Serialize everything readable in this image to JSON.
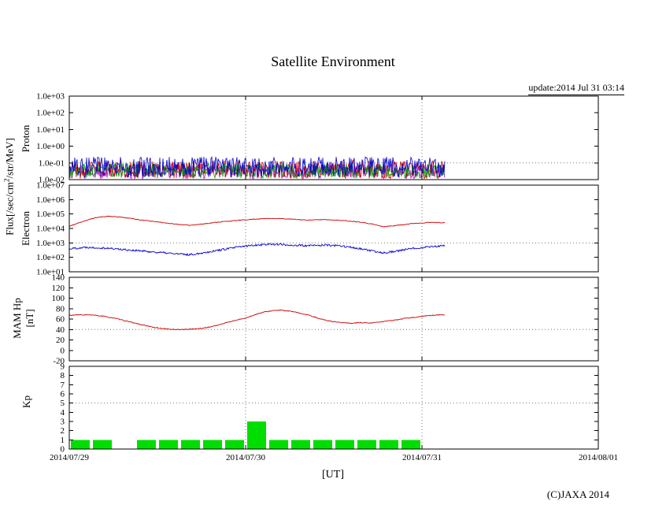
{
  "page": {
    "update_text": "update:2014 Jul 31 03:14",
    "copyright": "(C)JAXA 2014",
    "background": "#ffffff"
  },
  "axis_labels": {
    "flux_prefix": "Flux[/sec/cm",
    "flux_sup": "2",
    "flux_suffix": "/str/MeV]",
    "proton": "Proton",
    "electron": "Electron",
    "mam_hp_line1": "MAM Hp",
    "mam_hp_line2": "[nT]",
    "kp": "Kp"
  },
  "chart_data": {
    "suptitle": "Satellite Environment",
    "xaxis": {
      "label": "[UT]",
      "tick_labels": [
        "2014/07/29",
        "2014/07/30",
        "2014/07/31",
        "2014/08/01"
      ],
      "span_days": 3
    },
    "grid": {
      "vertical_dotted_days": [
        1,
        2
      ],
      "dotted_color": "#777777"
    },
    "panels": [
      {
        "name": "proton",
        "type": "line",
        "render": "noise-band",
        "ylabel": "Proton",
        "yscale": "log",
        "ylim_log": [
          -2,
          3
        ],
        "yticks": {
          "values": [
            1000,
            100,
            10,
            1,
            0.1,
            0.01
          ],
          "labels": [
            "1.0e+03",
            "1.0e+02",
            "1.0e+01",
            "1.0e+00",
            "1.0e-01",
            "1.0e-02"
          ]
        },
        "threshold": 0.1,
        "x_end_days": 2.13,
        "seed": 20140731,
        "series": [
          {
            "name": "proton-ch-magenta",
            "color": "#aa00aa",
            "center_log": -1.5,
            "noise_log": 0.45
          },
          {
            "name": "proton-ch-red",
            "color": "#cc0000",
            "center_log": -1.4,
            "noise_log": 0.55
          },
          {
            "name": "proton-ch-green",
            "color": "#009900",
            "center_log": -1.45,
            "noise_log": 0.45
          },
          {
            "name": "proton-ch-blue",
            "color": "#0000cc",
            "center_log": -1.25,
            "noise_log": 0.62
          }
        ]
      },
      {
        "name": "electron",
        "type": "line",
        "render": "lines",
        "ylabel": "Electron",
        "yscale": "log",
        "ylim_log": [
          1,
          7
        ],
        "yticks": {
          "values": [
            10000000,
            1000000,
            100000,
            10000,
            1000,
            100,
            10
          ],
          "labels": [
            "1.0e+07",
            "1.0e+06",
            "1.0e+05",
            "1.0e+04",
            "1.0e+03",
            "1.0e+02",
            "1.0e+01"
          ]
        },
        "threshold": 1000,
        "series": [
          {
            "name": "electron-high",
            "color": "#cc0000",
            "noise": 0.025,
            "seed": 11,
            "value_units": "log10(flux)",
            "points": [
              [
                0,
                4.15
              ],
              [
                0.08,
                4.5
              ],
              [
                0.15,
                4.75
              ],
              [
                0.22,
                4.85
              ],
              [
                0.3,
                4.78
              ],
              [
                0.4,
                4.6
              ],
              [
                0.5,
                4.45
              ],
              [
                0.6,
                4.3
              ],
              [
                0.68,
                4.22
              ],
              [
                0.75,
                4.3
              ],
              [
                0.85,
                4.45
              ],
              [
                0.95,
                4.55
              ],
              [
                1.05,
                4.65
              ],
              [
                1.15,
                4.7
              ],
              [
                1.25,
                4.65
              ],
              [
                1.35,
                4.58
              ],
              [
                1.45,
                4.62
              ],
              [
                1.55,
                4.55
              ],
              [
                1.65,
                4.45
              ],
              [
                1.72,
                4.3
              ],
              [
                1.78,
                4.12
              ],
              [
                1.85,
                4.2
              ],
              [
                1.95,
                4.35
              ],
              [
                2.05,
                4.42
              ],
              [
                2.13,
                4.4
              ]
            ]
          },
          {
            "name": "electron-low",
            "color": "#0000cc",
            "noise": 0.07,
            "seed": 22,
            "value_units": "log10(flux)",
            "points": [
              [
                0,
                2.6
              ],
              [
                0.1,
                2.7
              ],
              [
                0.2,
                2.65
              ],
              [
                0.3,
                2.55
              ],
              [
                0.4,
                2.45
              ],
              [
                0.5,
                2.35
              ],
              [
                0.6,
                2.25
              ],
              [
                0.68,
                2.18
              ],
              [
                0.75,
                2.3
              ],
              [
                0.85,
                2.5
              ],
              [
                0.95,
                2.7
              ],
              [
                1.05,
                2.85
              ],
              [
                1.15,
                2.92
              ],
              [
                1.25,
                2.85
              ],
              [
                1.35,
                2.8
              ],
              [
                1.45,
                2.85
              ],
              [
                1.55,
                2.78
              ],
              [
                1.65,
                2.6
              ],
              [
                1.72,
                2.42
              ],
              [
                1.78,
                2.32
              ],
              [
                1.85,
                2.42
              ],
              [
                1.95,
                2.62
              ],
              [
                2.05,
                2.75
              ],
              [
                2.13,
                2.8
              ]
            ]
          }
        ]
      },
      {
        "name": "mam-hp",
        "type": "line",
        "render": "lines",
        "ylabel": "MAM Hp [nT]",
        "yscale": "linear",
        "ylim": [
          -20,
          140
        ],
        "yticks": {
          "values": [
            140,
            120,
            100,
            80,
            60,
            40,
            20,
            0,
            -20
          ],
          "labels": [
            "140",
            "120",
            "100",
            "80",
            "60",
            "40",
            "20",
            "0",
            "-20"
          ]
        },
        "threshold": 40,
        "series": [
          {
            "name": "hp",
            "color": "#cc0000",
            "noise": 0.8,
            "seed": 33,
            "value_units": "nT",
            "points": [
              [
                0,
                67
              ],
              [
                0.05,
                68
              ],
              [
                0.1,
                68
              ],
              [
                0.15,
                67
              ],
              [
                0.2,
                65
              ],
              [
                0.25,
                62
              ],
              [
                0.3,
                58
              ],
              [
                0.35,
                54
              ],
              [
                0.4,
                50
              ],
              [
                0.45,
                46
              ],
              [
                0.5,
                43
              ],
              [
                0.55,
                41
              ],
              [
                0.6,
                40
              ],
              [
                0.65,
                40
              ],
              [
                0.7,
                41
              ],
              [
                0.75,
                42
              ],
              [
                0.8,
                45
              ],
              [
                0.85,
                49
              ],
              [
                0.9,
                54
              ],
              [
                0.95,
                58
              ],
              [
                1.0,
                62
              ],
              [
                1.05,
                68
              ],
              [
                1.1,
                73
              ],
              [
                1.15,
                76
              ],
              [
                1.2,
                77
              ],
              [
                1.25,
                75
              ],
              [
                1.3,
                72
              ],
              [
                1.35,
                68
              ],
              [
                1.4,
                63
              ],
              [
                1.45,
                58
              ],
              [
                1.5,
                55
              ],
              [
                1.55,
                53
              ],
              [
                1.6,
                52
              ],
              [
                1.65,
                53
              ],
              [
                1.7,
                52
              ],
              [
                1.75,
                54
              ],
              [
                1.8,
                56
              ],
              [
                1.85,
                58
              ],
              [
                1.9,
                61
              ],
              [
                1.95,
                63
              ],
              [
                2.0,
                65
              ],
              [
                2.05,
                67
              ],
              [
                2.1,
                68
              ],
              [
                2.13,
                68
              ]
            ]
          }
        ]
      },
      {
        "name": "kp",
        "type": "bar",
        "render": "bars",
        "ylabel": "Kp",
        "yscale": "linear",
        "ylim": [
          0,
          9
        ],
        "yticks": {
          "values": [
            9,
            8,
            7,
            6,
            5,
            4,
            3,
            2,
            1,
            0
          ],
          "labels": [
            "9",
            "8",
            "7",
            "6",
            "5",
            "4",
            "3",
            "2",
            "1",
            "0"
          ]
        },
        "threshold": 5,
        "bar_color": "#00dd00",
        "slot_hours": 3,
        "values": [
          1,
          1,
          0,
          1,
          1,
          1,
          1,
          1,
          3,
          1,
          1,
          1,
          1,
          1,
          1,
          1
        ]
      }
    ]
  }
}
